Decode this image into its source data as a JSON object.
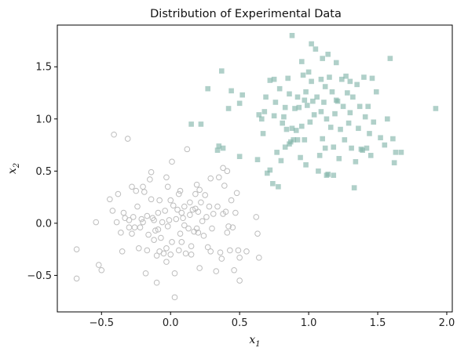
{
  "chart_data": {
    "type": "scatter",
    "title": "Distribution of Experimental Data",
    "xlabel": {
      "base": "x",
      "sub": "1"
    },
    "ylabel": {
      "base": "x",
      "sub": "2"
    },
    "xlim": [
      -0.82,
      2.04
    ],
    "ylim": [
      -0.85,
      1.9
    ],
    "xticks": [
      -0.5,
      0.0,
      0.5,
      1.0,
      1.5,
      2.0
    ],
    "xtick_labels": [
      "−0.5",
      "0.0",
      "0.5",
      "1.0",
      "1.5",
      "2.0"
    ],
    "yticks": [
      -0.5,
      0.0,
      0.5,
      1.0,
      1.5
    ],
    "ytick_labels": [
      "−0.5",
      "0.0",
      "0.5",
      "1.0",
      "1.5"
    ],
    "grid": false,
    "legend": "none",
    "series": [
      {
        "marker": "circle-open",
        "color": "#bdbdbd",
        "points": [
          [
            -0.68,
            -0.25
          ],
          [
            -0.68,
            -0.53
          ],
          [
            -0.54,
            0.01
          ],
          [
            -0.52,
            -0.4
          ],
          [
            -0.5,
            -0.45
          ],
          [
            -0.44,
            0.23
          ],
          [
            -0.42,
            0.12
          ],
          [
            -0.41,
            0.85
          ],
          [
            -0.39,
            0.01
          ],
          [
            -0.38,
            0.28
          ],
          [
            -0.36,
            -0.09
          ],
          [
            -0.35,
            -0.27
          ],
          [
            -0.34,
            0.1
          ],
          [
            -0.33,
            0.05
          ],
          [
            -0.31,
            0.81
          ],
          [
            -0.3,
            -0.04
          ],
          [
            -0.3,
            0.03
          ],
          [
            -0.28,
            0.35
          ],
          [
            -0.28,
            -0.1
          ],
          [
            -0.27,
            0.06
          ],
          [
            -0.26,
            -0.04
          ],
          [
            -0.25,
            0.31
          ],
          [
            -0.24,
            0.16
          ],
          [
            -0.23,
            -0.24
          ],
          [
            -0.22,
            -0.04
          ],
          [
            -0.21,
            0.04
          ],
          [
            -0.2,
            0.35
          ],
          [
            -0.2,
            0.01
          ],
          [
            -0.19,
            0.3
          ],
          [
            -0.18,
            -0.48
          ],
          [
            -0.17,
            -0.26
          ],
          [
            -0.17,
            0.07
          ],
          [
            -0.16,
            -0.11
          ],
          [
            -0.15,
            0.42
          ],
          [
            -0.14,
            0.23
          ],
          [
            -0.14,
            0.49
          ],
          [
            -0.13,
            0.05
          ],
          [
            -0.12,
            0.03
          ],
          [
            -0.12,
            -0.16
          ],
          [
            -0.11,
            -0.07
          ],
          [
            -0.1,
            -0.31
          ],
          [
            -0.1,
            -0.57
          ],
          [
            -0.09,
            0.1
          ],
          [
            -0.09,
            -0.06
          ],
          [
            -0.08,
            -0.27
          ],
          [
            -0.08,
            0.22
          ],
          [
            -0.07,
            -0.14
          ],
          [
            -0.06,
            0.01
          ],
          [
            -0.05,
            -0.29
          ],
          [
            -0.04,
            0.12
          ],
          [
            -0.03,
            -0.24
          ],
          [
            -0.03,
            -0.37
          ],
          [
            -0.02,
            0.35
          ],
          [
            -0.02,
            -0.03
          ],
          [
            -0.01,
            0.03
          ],
          [
            0.0,
            -0.3
          ],
          [
            0.0,
            0.22
          ],
          [
            0.01,
            0.59
          ],
          [
            0.01,
            -0.18
          ],
          [
            0.02,
            0.17
          ],
          [
            0.03,
            -0.48
          ],
          [
            0.03,
            -0.71
          ],
          [
            0.04,
            0.04
          ],
          [
            0.05,
            0.13
          ],
          [
            0.06,
            0.28
          ],
          [
            0.06,
            -0.26
          ],
          [
            0.07,
            -0.1
          ],
          [
            0.07,
            0.31
          ],
          [
            0.08,
            0.1
          ],
          [
            0.08,
            -0.18
          ],
          [
            0.09,
            0.05
          ],
          [
            0.1,
            -0.02
          ],
          [
            0.1,
            0.16
          ],
          [
            0.11,
            -0.29
          ],
          [
            0.12,
            0.71
          ],
          [
            0.13,
            -0.05
          ],
          [
            0.14,
            0.2
          ],
          [
            0.14,
            0.08
          ],
          [
            0.15,
            -0.22
          ],
          [
            0.15,
            -0.3
          ],
          [
            0.16,
            0.13
          ],
          [
            0.17,
            -0.08
          ],
          [
            0.18,
            0.14
          ],
          [
            0.18,
            0.28
          ],
          [
            0.19,
            0.37
          ],
          [
            0.19,
            -0.05
          ],
          [
            0.2,
            0.11
          ],
          [
            0.2,
            -0.09
          ],
          [
            0.21,
            0.32
          ],
          [
            0.21,
            -0.43
          ],
          [
            0.22,
            0.2
          ],
          [
            0.23,
            0.02
          ],
          [
            0.24,
            -0.12
          ],
          [
            0.25,
            0.27
          ],
          [
            0.26,
            0.06
          ],
          [
            0.27,
            -0.23
          ],
          [
            0.28,
            0.16
          ],
          [
            0.29,
            -0.27
          ],
          [
            0.3,
            -0.05
          ],
          [
            0.31,
            0.09
          ],
          [
            0.33,
            -0.46
          ],
          [
            0.34,
            0.16
          ],
          [
            0.35,
            0.44
          ],
          [
            0.36,
            -0.28
          ],
          [
            0.37,
            -0.34
          ],
          [
            0.38,
            0.53
          ],
          [
            0.38,
            0.09
          ],
          [
            0.39,
            0.36
          ],
          [
            0.4,
            0.11
          ],
          [
            0.41,
            0.5
          ],
          [
            0.41,
            -0.09
          ],
          [
            0.42,
            -0.03
          ],
          [
            0.43,
            -0.26
          ],
          [
            0.44,
            0.22
          ],
          [
            0.45,
            -0.04
          ],
          [
            0.46,
            -0.45
          ],
          [
            0.47,
            0.1
          ],
          [
            0.48,
            0.29
          ],
          [
            0.49,
            -0.26
          ],
          [
            0.5,
            -0.33
          ],
          [
            0.5,
            -0.55
          ],
          [
            0.55,
            -0.27
          ],
          [
            0.62,
            0.06
          ],
          [
            0.63,
            -0.1
          ],
          [
            0.64,
            -0.33
          ],
          [
            0.29,
            0.43
          ],
          [
            -0.03,
            0.44
          ]
        ]
      },
      {
        "marker": "square",
        "color": "#7fb3a8",
        "points": [
          [
            0.15,
            0.95
          ],
          [
            0.22,
            0.95
          ],
          [
            0.27,
            1.29
          ],
          [
            0.34,
            0.7
          ],
          [
            0.35,
            0.74
          ],
          [
            0.37,
            1.46
          ],
          [
            0.38,
            0.72
          ],
          [
            0.42,
            1.1
          ],
          [
            0.44,
            1.27
          ],
          [
            0.5,
            1.15
          ],
          [
            0.5,
            0.64
          ],
          [
            0.52,
            1.23
          ],
          [
            0.63,
            0.61
          ],
          [
            0.64,
            1.04
          ],
          [
            0.66,
            1.0
          ],
          [
            0.67,
            0.86
          ],
          [
            0.68,
            1.07
          ],
          [
            0.69,
            1.21
          ],
          [
            0.7,
            0.48
          ],
          [
            0.72,
            0.51
          ],
          [
            0.72,
            1.37
          ],
          [
            0.74,
            0.38
          ],
          [
            0.75,
            1.03
          ],
          [
            0.75,
            1.38
          ],
          [
            0.76,
            1.16
          ],
          [
            0.77,
            0.68
          ],
          [
            0.78,
            0.35
          ],
          [
            0.79,
            1.29
          ],
          [
            0.8,
            0.6
          ],
          [
            0.81,
            0.96
          ],
          [
            0.82,
            1.02
          ],
          [
            0.83,
            1.11
          ],
          [
            0.83,
            0.73
          ],
          [
            0.84,
            0.9
          ],
          [
            0.85,
            1.39
          ],
          [
            0.86,
            1.24
          ],
          [
            0.86,
            0.76
          ],
          [
            0.87,
            0.78
          ],
          [
            0.88,
            1.8
          ],
          [
            0.88,
            0.91
          ],
          [
            0.89,
            0.8
          ],
          [
            0.9,
            1.1
          ],
          [
            0.91,
            0.89
          ],
          [
            0.92,
            1.21
          ],
          [
            0.92,
            0.8
          ],
          [
            0.93,
            1.11
          ],
          [
            0.94,
            0.63
          ],
          [
            0.95,
            1.55
          ],
          [
            0.95,
            0.93
          ],
          [
            0.96,
            1.42
          ],
          [
            0.97,
            1.18
          ],
          [
            0.98,
            1.26
          ],
          [
            0.98,
            0.56
          ],
          [
            0.99,
            1.13
          ],
          [
            1.0,
            1.45
          ],
          [
            1.01,
            0.97
          ],
          [
            1.02,
            1.36
          ],
          [
            1.03,
            1.17
          ],
          [
            1.04,
            1.04
          ],
          [
            1.05,
            1.67
          ],
          [
            1.06,
            1.21
          ],
          [
            1.07,
            0.5
          ],
          [
            1.08,
            0.65
          ],
          [
            1.09,
            1.07
          ],
          [
            1.1,
            0.81
          ],
          [
            1.11,
            1.16
          ],
          [
            1.12,
            0.72
          ],
          [
            1.12,
            1.31
          ],
          [
            1.13,
            1.0
          ],
          [
            1.14,
            1.62
          ],
          [
            1.14,
            0.47
          ],
          [
            1.15,
            1.4
          ],
          [
            1.16,
            0.92
          ],
          [
            1.17,
            1.26
          ],
          [
            1.18,
            0.73
          ],
          [
            1.19,
            1.05
          ],
          [
            1.2,
            1.54
          ],
          [
            1.21,
            1.17
          ],
          [
            1.22,
            0.62
          ],
          [
            1.23,
            0.9
          ],
          [
            1.24,
            1.38
          ],
          [
            1.25,
            1.12
          ],
          [
            1.26,
            0.8
          ],
          [
            1.27,
            1.41
          ],
          [
            1.28,
            1.25
          ],
          [
            1.29,
            0.96
          ],
          [
            1.3,
            1.36
          ],
          [
            1.31,
            0.72
          ],
          [
            1.32,
            1.21
          ],
          [
            1.33,
            0.34
          ],
          [
            1.34,
            0.59
          ],
          [
            1.35,
            1.33
          ],
          [
            1.36,
            0.91
          ],
          [
            1.37,
            1.12
          ],
          [
            1.38,
            0.71
          ],
          [
            1.39,
            0.7
          ],
          [
            1.4,
            1.4
          ],
          [
            1.41,
            1.02
          ],
          [
            1.42,
            0.72
          ],
          [
            1.43,
            1.12
          ],
          [
            1.44,
            0.86
          ],
          [
            1.45,
            0.65
          ],
          [
            1.46,
            1.39
          ],
          [
            1.47,
            0.97
          ],
          [
            1.49,
            1.26
          ],
          [
            1.52,
            0.82
          ],
          [
            1.55,
            0.75
          ],
          [
            1.57,
            1.0
          ],
          [
            1.59,
            1.58
          ],
          [
            1.61,
            0.81
          ],
          [
            1.62,
            0.58
          ],
          [
            1.63,
            0.68
          ],
          [
            1.67,
            0.68
          ],
          [
            1.92,
            1.1
          ],
          [
            1.02,
            1.72
          ],
          [
            1.1,
            1.58
          ],
          [
            1.2,
            1.18
          ],
          [
            1.09,
            1.38
          ],
          [
            0.97,
            0.8
          ],
          [
            1.3,
            1.06
          ],
          [
            1.18,
            0.46
          ],
          [
            1.13,
            0.46
          ]
        ]
      }
    ]
  }
}
